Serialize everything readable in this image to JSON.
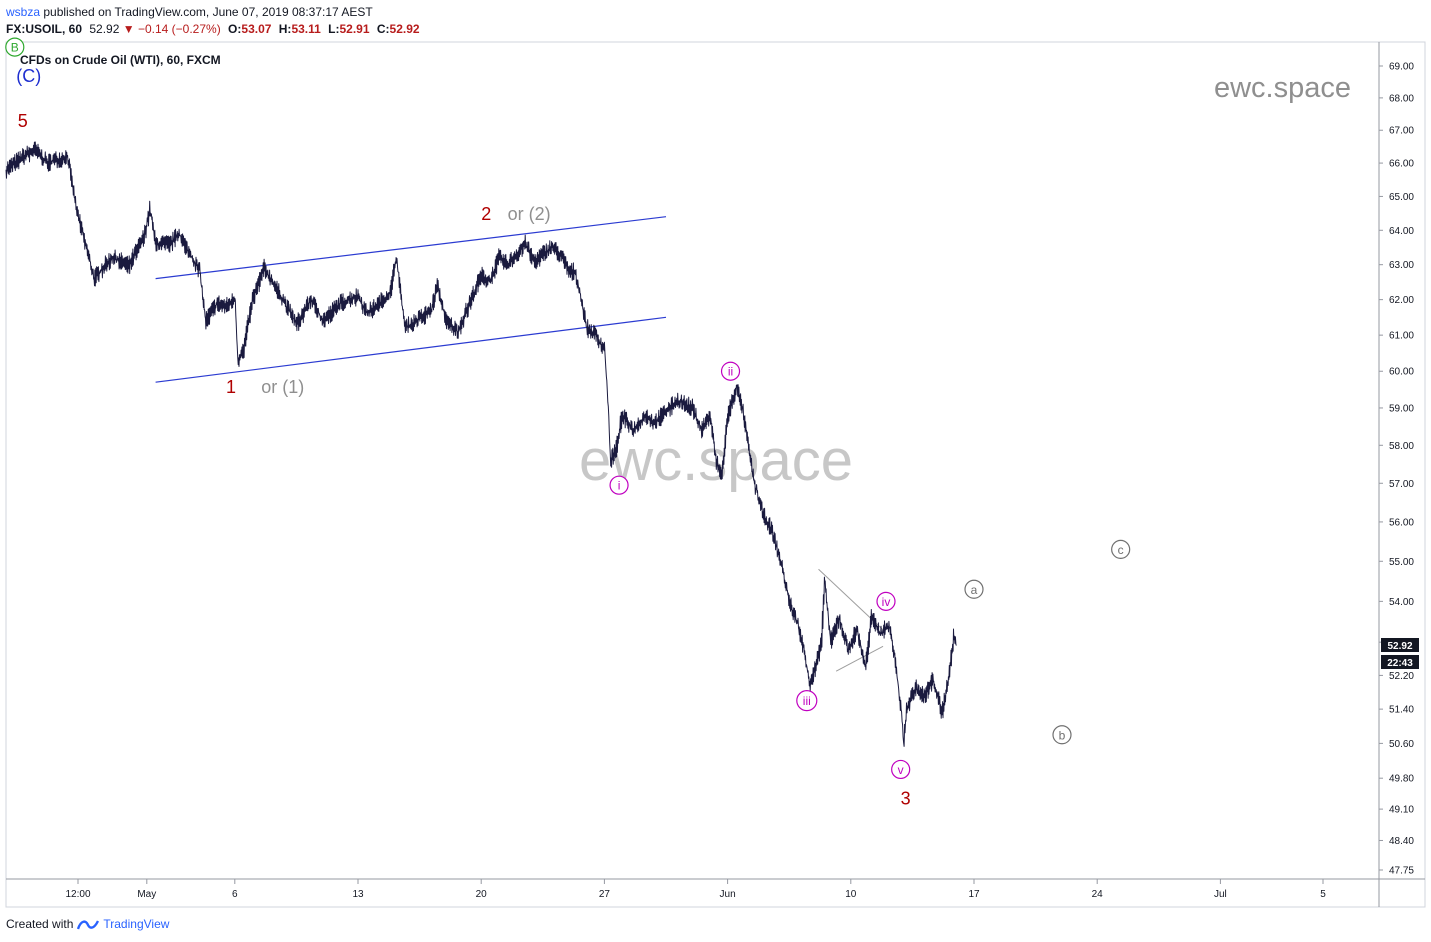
{
  "header": {
    "author": "wsbza",
    "published_text": "published on TradingView.com, June 07, 2019 08:37:17 AEST"
  },
  "symbol_bar": {
    "symbol": "FX:USOIL, 60",
    "last": "52.92",
    "change": "−0.14 (−0.27%)",
    "open_label": "O:",
    "open": "53.07",
    "high_label": "H:",
    "high": "53.11",
    "low_label": "L:",
    "low": "52.91",
    "close_label": "C:",
    "close": "52.92"
  },
  "instrument_title": "CFDs on Crude Oil (WTI), 60, FXCM",
  "watermark_small": "ewc.space",
  "watermark_large": "ewc.space",
  "price_tags": {
    "last_price": "52.92",
    "countdown": "22:43"
  },
  "footer": {
    "created_with": "Created with",
    "brand": "TradingView"
  },
  "colors": {
    "price_line": "#1a1a3e",
    "channel": "#2b3bd1",
    "wave_red": "#b00000",
    "wave_grey": "#8f8f8f",
    "wave_blue": "#1f2fd0",
    "wave_magenta": "#c000c0",
    "wave_green": "#2ea82e",
    "price_tag_bg": "#131722"
  },
  "chart_data": {
    "type": "line",
    "title": "CFDs on Crude Oil (WTI), 60, FXCM",
    "x_type": "date",
    "x_ticks": [
      "12:00",
      "May",
      "6",
      "13",
      "20",
      "27",
      "Jun",
      "10",
      "17",
      "24",
      "Jul",
      "5"
    ],
    "y_ticks": [
      "69.00",
      "68.00",
      "67.00",
      "66.00",
      "65.00",
      "64.00",
      "63.00",
      "62.00",
      "61.00",
      "60.00",
      "59.00",
      "58.00",
      "57.00",
      "56.00",
      "55.00",
      "54.00",
      "53.00",
      "52.20",
      "51.40",
      "50.60",
      "49.80",
      "49.10",
      "48.40",
      "47.75"
    ],
    "y_scale": "log",
    "y_range": [
      47.75,
      69.0
    ],
    "x_range": [
      "2019-04-23T00:00",
      "2019-07-06T00:00"
    ],
    "grid": false,
    "series": [
      {
        "values": [
          [
            "2019-04-23T00:00",
            65.8
          ],
          [
            "2019-04-24T00:00",
            66.2
          ],
          [
            "2019-04-24T16:00",
            66.4
          ],
          [
            "2019-04-25T08:00",
            66.0
          ],
          [
            "2019-04-25T20:00",
            66.1
          ],
          [
            "2019-04-26T12:00",
            66.2
          ],
          [
            "2019-04-27T00:00",
            64.6
          ],
          [
            "2019-04-28T00:00",
            62.6
          ],
          [
            "2019-04-29T00:00",
            63.2
          ],
          [
            "2019-04-30T00:00",
            63.0
          ],
          [
            "2019-04-30T20:00",
            63.8
          ],
          [
            "2019-05-01T04:00",
            64.6
          ],
          [
            "2019-05-01T12:00",
            63.6
          ],
          [
            "2019-05-02T08:00",
            63.6
          ],
          [
            "2019-05-02T20:00",
            63.9
          ],
          [
            "2019-05-03T08:00",
            63.4
          ],
          [
            "2019-05-04T00:00",
            62.8
          ],
          [
            "2019-05-04T08:00",
            61.4
          ],
          [
            "2019-05-05T00:00",
            61.9
          ],
          [
            "2019-05-05T12:00",
            61.8
          ],
          [
            "2019-05-06T00:00",
            62.0
          ],
          [
            "2019-05-06T04:00",
            60.3
          ],
          [
            "2019-05-06T12:00",
            60.6
          ],
          [
            "2019-05-07T00:00",
            62.0
          ],
          [
            "2019-05-07T16:00",
            62.9
          ],
          [
            "2019-05-08T12:00",
            62.2
          ],
          [
            "2019-05-09T12:00",
            61.3
          ],
          [
            "2019-05-10T08:00",
            62.0
          ],
          [
            "2019-05-11T00:00",
            61.4
          ],
          [
            "2019-05-12T00:00",
            61.9
          ],
          [
            "2019-05-13T00:00",
            62.1
          ],
          [
            "2019-05-13T12:00",
            61.6
          ],
          [
            "2019-05-14T00:00",
            61.8
          ],
          [
            "2019-05-14T20:00",
            62.2
          ],
          [
            "2019-05-15T04:00",
            63.2
          ],
          [
            "2019-05-15T16:00",
            61.2
          ],
          [
            "2019-05-16T08:00",
            61.4
          ],
          [
            "2019-05-17T04:00",
            61.7
          ],
          [
            "2019-05-17T12:00",
            62.4
          ],
          [
            "2019-05-18T00:00",
            61.4
          ],
          [
            "2019-05-18T16:00",
            61.1
          ],
          [
            "2019-05-19T08:00",
            61.9
          ],
          [
            "2019-05-20T00:00",
            62.7
          ],
          [
            "2019-05-20T12:00",
            62.5
          ],
          [
            "2019-05-21T00:00",
            63.2
          ],
          [
            "2019-05-21T12:00",
            63.0
          ],
          [
            "2019-05-22T00:00",
            63.3
          ],
          [
            "2019-05-22T12:00",
            63.6
          ],
          [
            "2019-05-23T00:00",
            63.1
          ],
          [
            "2019-05-23T12:00",
            63.3
          ],
          [
            "2019-05-24T00:00",
            63.5
          ],
          [
            "2019-05-24T12:00",
            63.3
          ],
          [
            "2019-05-25T00:00",
            62.8
          ],
          [
            "2019-05-25T08:00",
            62.8
          ],
          [
            "2019-05-26T00:00",
            61.2
          ],
          [
            "2019-05-26T12:00",
            61.0
          ],
          [
            "2019-05-27T00:00",
            60.6
          ],
          [
            "2019-05-27T04:00",
            59.4
          ],
          [
            "2019-05-27T08:00",
            57.6
          ],
          [
            "2019-05-27T16:00",
            57.9
          ],
          [
            "2019-05-28T00:00",
            58.8
          ],
          [
            "2019-05-28T16:00",
            58.4
          ],
          [
            "2019-05-29T08:00",
            58.8
          ],
          [
            "2019-05-29T20:00",
            58.6
          ],
          [
            "2019-05-30T12:00",
            58.9
          ],
          [
            "2019-05-31T04:00",
            59.2
          ],
          [
            "2019-06-01T00:00",
            59.0
          ],
          [
            "2019-06-01T12:00",
            58.4
          ],
          [
            "2019-06-02T00:00",
            58.8
          ],
          [
            "2019-06-02T08:00",
            57.6
          ],
          [
            "2019-06-02T16:00",
            57.2
          ],
          [
            "2019-06-03T00:00",
            58.8
          ],
          [
            "2019-06-03T08:00",
            59.3
          ],
          [
            "2019-06-03T12:00",
            59.6
          ],
          [
            "2019-06-03T20:00",
            59.0
          ],
          [
            "2019-06-04T04:00",
            58.0
          ],
          [
            "2019-06-04T12:00",
            57.0
          ],
          [
            "2019-06-05T00:00",
            56.2
          ],
          [
            "2019-06-05T12:00",
            55.8
          ],
          [
            "2019-06-06T00:00",
            55.0
          ],
          [
            "2019-06-06T12:00",
            54.0
          ],
          [
            "2019-06-07T00:00",
            53.4
          ],
          [
            "2019-06-07T08:00",
            52.8
          ],
          [
            "2019-06-07T16:00",
            52.0
          ],
          [
            "2019-06-08T00:00",
            52.4
          ],
          [
            "2019-06-08T08:00",
            53.0
          ],
          [
            "2019-06-08T12:00",
            54.6
          ],
          [
            "2019-06-08T20:00",
            53.0
          ],
          [
            "2019-06-09T08:00",
            53.6
          ],
          [
            "2019-06-09T20:00",
            52.8
          ],
          [
            "2019-06-10T08:00",
            53.3
          ],
          [
            "2019-06-10T20:00",
            52.4
          ],
          [
            "2019-06-11T04:00",
            53.6
          ],
          [
            "2019-06-11T16:00",
            53.2
          ],
          [
            "2019-06-12T04:00",
            53.4
          ],
          [
            "2019-06-12T12:00",
            52.6
          ],
          [
            "2019-06-12T20:00",
            51.4
          ],
          [
            "2019-06-13T00:00",
            50.6
          ],
          [
            "2019-06-13T04:00",
            51.4
          ],
          [
            "2019-06-13T16:00",
            51.9
          ],
          [
            "2019-06-14T04:00",
            51.7
          ],
          [
            "2019-06-14T16:00",
            52.1
          ],
          [
            "2019-06-15T00:00",
            51.6
          ],
          [
            "2019-06-15T04:00",
            51.3
          ],
          [
            "2019-06-15T12:00",
            52.0
          ],
          [
            "2019-06-15T20:00",
            53.1
          ],
          [
            "2019-06-16T00:00",
            52.92
          ]
        ]
      }
    ],
    "channel_lines": [
      {
        "name": "upper",
        "from": [
          "2019-05-01T12:00",
          62.6
        ],
        "to": [
          "2019-05-30T12:00",
          64.4
        ]
      },
      {
        "name": "lower",
        "from": [
          "2019-05-01T12:00",
          59.7
        ],
        "to": [
          "2019-05-30T12:00",
          61.5
        ]
      }
    ],
    "triangle_lines": [
      {
        "from": [
          "2019-06-08T04:00",
          54.8
        ],
        "to": [
          "2019-06-11T20:00",
          53.3
        ]
      },
      {
        "from": [
          "2019-06-09T04:00",
          52.3
        ],
        "to": [
          "2019-06-11T20:00",
          52.9
        ]
      }
    ],
    "annotations": [
      {
        "text": "B",
        "style": "circle-green",
        "at": [
          "2019-04-23T12:00",
          69.6
        ]
      },
      {
        "text": "(C)",
        "style": "blue",
        "at": [
          "2019-04-23T14:00",
          68.5
        ]
      },
      {
        "text": "5",
        "style": "red",
        "at": [
          "2019-04-23T16:00",
          67.1
        ]
      },
      {
        "text": "1",
        "style": "red",
        "at": [
          "2019-05-05T12:00",
          59.4
        ]
      },
      {
        "text": "or (1)",
        "style": "grey",
        "at": [
          "2019-05-07T12:00",
          59.4
        ]
      },
      {
        "text": "2",
        "style": "red",
        "at": [
          "2019-05-20T00:00",
          64.3
        ]
      },
      {
        "text": "or (2)",
        "style": "grey",
        "at": [
          "2019-05-21T12:00",
          64.3
        ]
      },
      {
        "text": "ii",
        "style": "circle-magenta",
        "at": [
          "2019-06-03T04:00",
          60.0
        ]
      },
      {
        "text": "i",
        "style": "circle-magenta",
        "at": [
          "2019-05-27T20:00",
          56.95
        ]
      },
      {
        "text": "iii",
        "style": "circle-magenta",
        "at": [
          "2019-06-07T12:00",
          51.6
        ]
      },
      {
        "text": "iv",
        "style": "circle-magenta",
        "at": [
          "2019-06-12T00:00",
          54.0
        ]
      },
      {
        "text": "v",
        "style": "circle-magenta",
        "at": [
          "2019-06-12T20:00",
          50.0
        ]
      },
      {
        "text": "3",
        "style": "red",
        "at": [
          "2019-06-12T20:00",
          49.2
        ]
      },
      {
        "text": "a",
        "style": "circle-grey",
        "at": [
          "2019-06-17T00:00",
          54.3
        ]
      },
      {
        "text": "b",
        "style": "circle-grey",
        "at": [
          "2019-06-22T00:00",
          50.8
        ]
      },
      {
        "text": "c",
        "style": "circle-grey",
        "at": [
          "2019-06-25T08:00",
          55.3
        ]
      }
    ]
  }
}
